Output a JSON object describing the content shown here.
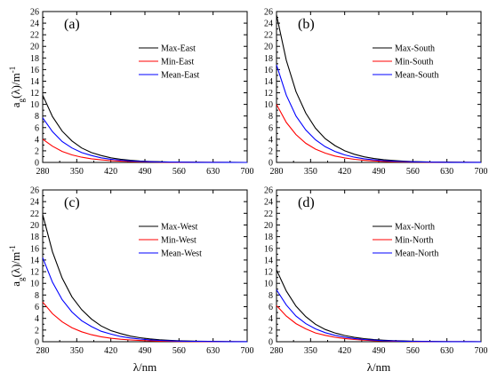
{
  "figure": {
    "ylabel": "a_g(λ)/m^-1",
    "xlabel": "λ/nm"
  },
  "chart_data": [
    {
      "type": "line",
      "panel_label": "(a)",
      "xlabel": "",
      "ylabel": "a_g(λ)/m^-1",
      "xlim": [
        280,
        700
      ],
      "ylim": [
        0,
        26
      ],
      "xticks": [
        280,
        350,
        420,
        490,
        560,
        630,
        700
      ],
      "yticks": [
        0,
        2,
        4,
        6,
        8,
        10,
        12,
        14,
        16,
        18,
        20,
        22,
        24,
        26
      ],
      "legend_position": "top-right",
      "x": [
        280,
        300,
        320,
        340,
        360,
        380,
        400,
        420,
        440,
        460,
        480,
        500,
        520,
        540,
        560,
        580,
        600,
        620,
        640,
        660,
        680,
        700
      ],
      "series": [
        {
          "name": "Max-East",
          "color": "#000000",
          "values": [
            11.6,
            7.9,
            5.4,
            3.7,
            2.5,
            1.7,
            1.2,
            0.8,
            0.55,
            0.37,
            0.25,
            0.17,
            0.12,
            0.08,
            0.05,
            0.04,
            0.03,
            0.02,
            0.01,
            0.01,
            0.01,
            0.0
          ]
        },
        {
          "name": "Min-East",
          "color": "#ff0000",
          "values": [
            4.0,
            2.8,
            1.9,
            1.3,
            0.9,
            0.63,
            0.44,
            0.3,
            0.21,
            0.15,
            0.1,
            0.07,
            0.05,
            0.03,
            0.02,
            0.02,
            0.01,
            0.01,
            0.01,
            0.0,
            0.0,
            0.0
          ]
        },
        {
          "name": "Mean-East",
          "color": "#0000ff",
          "values": [
            7.7,
            5.3,
            3.6,
            2.5,
            1.7,
            1.2,
            0.8,
            0.55,
            0.38,
            0.26,
            0.18,
            0.12,
            0.08,
            0.06,
            0.04,
            0.03,
            0.02,
            0.01,
            0.01,
            0.01,
            0.0,
            0.0
          ]
        }
      ]
    },
    {
      "type": "line",
      "panel_label": "(b)",
      "xlabel": "",
      "ylabel": "",
      "xlim": [
        280,
        700
      ],
      "ylim": [
        0,
        26
      ],
      "xticks": [
        280,
        350,
        420,
        490,
        560,
        630,
        700
      ],
      "yticks": [
        0,
        2,
        4,
        6,
        8,
        10,
        12,
        14,
        16,
        18,
        20,
        22,
        24,
        26
      ],
      "legend_position": "right",
      "x": [
        280,
        300,
        320,
        340,
        360,
        380,
        400,
        420,
        440,
        460,
        480,
        500,
        520,
        540,
        560,
        580,
        600,
        620,
        640,
        660,
        680,
        700
      ],
      "series": [
        {
          "name": "Max-South",
          "color": "#000000",
          "values": [
            25.4,
            17.6,
            12.2,
            8.5,
            5.9,
            4.1,
            2.9,
            2.0,
            1.4,
            0.97,
            0.68,
            0.47,
            0.33,
            0.23,
            0.16,
            0.11,
            0.08,
            0.06,
            0.04,
            0.03,
            0.02,
            0.01
          ]
        },
        {
          "name": "Min-South",
          "color": "#ff0000",
          "values": [
            10.0,
            6.9,
            4.8,
            3.3,
            2.3,
            1.6,
            1.1,
            0.78,
            0.54,
            0.37,
            0.26,
            0.18,
            0.12,
            0.09,
            0.06,
            0.04,
            0.03,
            0.02,
            0.01,
            0.01,
            0.01,
            0.0
          ]
        },
        {
          "name": "Mean-South",
          "color": "#0000ff",
          "values": [
            16.8,
            11.6,
            8.0,
            5.6,
            3.9,
            2.7,
            1.9,
            1.3,
            0.9,
            0.63,
            0.44,
            0.3,
            0.21,
            0.15,
            0.1,
            0.07,
            0.05,
            0.03,
            0.02,
            0.02,
            0.01,
            0.01
          ]
        }
      ]
    },
    {
      "type": "line",
      "panel_label": "(c)",
      "xlabel": "λ/nm",
      "ylabel": "a_g(λ)/m^-1",
      "xlim": [
        280,
        700
      ],
      "ylim": [
        0,
        26
      ],
      "xticks": [
        280,
        350,
        420,
        490,
        560,
        630,
        700
      ],
      "yticks": [
        0,
        2,
        4,
        6,
        8,
        10,
        12,
        14,
        16,
        18,
        20,
        22,
        24,
        26
      ],
      "legend_position": "top-right",
      "x": [
        280,
        300,
        320,
        340,
        360,
        380,
        400,
        420,
        440,
        460,
        480,
        500,
        520,
        540,
        560,
        580,
        600,
        620,
        640,
        660,
        680,
        700
      ],
      "series": [
        {
          "name": "Max-West",
          "color": "#000000",
          "values": [
            21.8,
            15.4,
            10.9,
            7.7,
            5.5,
            3.9,
            2.7,
            1.9,
            1.4,
            0.96,
            0.68,
            0.48,
            0.34,
            0.24,
            0.17,
            0.12,
            0.09,
            0.06,
            0.04,
            0.03,
            0.02,
            0.02
          ]
        },
        {
          "name": "Min-West",
          "color": "#ff0000",
          "values": [
            6.8,
            4.8,
            3.4,
            2.4,
            1.7,
            1.2,
            0.85,
            0.6,
            0.43,
            0.3,
            0.21,
            0.15,
            0.11,
            0.08,
            0.05,
            0.04,
            0.03,
            0.02,
            0.01,
            0.01,
            0.01,
            0.0
          ]
        },
        {
          "name": "Mean-West",
          "color": "#0000ff",
          "values": [
            14.4,
            10.2,
            7.2,
            5.1,
            3.6,
            2.6,
            1.8,
            1.3,
            0.9,
            0.64,
            0.45,
            0.32,
            0.23,
            0.16,
            0.11,
            0.08,
            0.06,
            0.04,
            0.03,
            0.02,
            0.01,
            0.01
          ]
        }
      ]
    },
    {
      "type": "line",
      "panel_label": "(d)",
      "xlabel": "λ/nm",
      "ylabel": "",
      "xlim": [
        280,
        700
      ],
      "ylim": [
        0,
        26
      ],
      "xticks": [
        280,
        350,
        420,
        490,
        560,
        630,
        700
      ],
      "yticks": [
        0,
        2,
        4,
        6,
        8,
        10,
        12,
        14,
        16,
        18,
        20,
        22,
        24,
        26
      ],
      "legend_position": "right",
      "x": [
        280,
        300,
        320,
        340,
        360,
        380,
        400,
        420,
        440,
        460,
        480,
        500,
        520,
        540,
        560,
        580,
        600,
        620,
        640,
        660,
        680,
        700
      ],
      "series": [
        {
          "name": "Max-North",
          "color": "#000000",
          "values": [
            12.3,
            8.7,
            6.1,
            4.3,
            3.0,
            2.1,
            1.5,
            1.06,
            0.75,
            0.53,
            0.37,
            0.26,
            0.18,
            0.13,
            0.09,
            0.07,
            0.05,
            0.03,
            0.02,
            0.02,
            0.01,
            0.01
          ]
        },
        {
          "name": "Min-North",
          "color": "#ff0000",
          "values": [
            6.2,
            4.4,
            3.1,
            2.2,
            1.5,
            1.1,
            0.76,
            0.54,
            0.38,
            0.27,
            0.19,
            0.13,
            0.09,
            0.07,
            0.05,
            0.03,
            0.02,
            0.02,
            0.01,
            0.01,
            0.01,
            0.0
          ]
        },
        {
          "name": "Mean-North",
          "color": "#0000ff",
          "values": [
            8.9,
            6.3,
            4.4,
            3.1,
            2.2,
            1.55,
            1.1,
            0.77,
            0.54,
            0.38,
            0.27,
            0.19,
            0.13,
            0.09,
            0.07,
            0.05,
            0.03,
            0.02,
            0.02,
            0.01,
            0.01,
            0.0
          ]
        }
      ]
    }
  ]
}
